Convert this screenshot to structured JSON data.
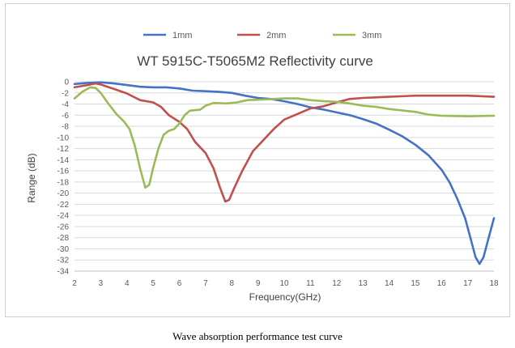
{
  "caption": "Wave absorption performance test curve",
  "chart_data": {
    "type": "line",
    "title": "WT 5915C-T5065M2 Reflectivity curve",
    "xlabel": "Frequency(GHz)",
    "ylabel": "Range (dB)",
    "xlim": [
      2,
      18
    ],
    "ylim": [
      -34,
      0
    ],
    "x_ticks": [
      "2",
      "3",
      "4",
      "5",
      "6",
      "7",
      "8",
      "9",
      "10",
      "11",
      "12",
      "13",
      "14",
      "15",
      "16",
      "17",
      "18"
    ],
    "y_ticks": [
      "0",
      "-2",
      "-4",
      "-6",
      "-8",
      "-10",
      "-12",
      "-14",
      "-16",
      "-18",
      "-20",
      "-22",
      "-24",
      "-26",
      "-28",
      "-30",
      "-32",
      "-34"
    ],
    "grid": "horizontal",
    "legend_position": "top",
    "series": [
      {
        "name": "1mm",
        "color": "#4472c4",
        "points": [
          [
            2,
            -0.4
          ],
          [
            2.5,
            -0.2
          ],
          [
            3,
            -0.1
          ],
          [
            3.5,
            -0.3
          ],
          [
            4,
            -0.6
          ],
          [
            4.5,
            -0.9
          ],
          [
            5,
            -1.0
          ],
          [
            5.5,
            -1.0
          ],
          [
            6,
            -1.2
          ],
          [
            6.5,
            -1.6
          ],
          [
            7,
            -1.7
          ],
          [
            7.5,
            -1.8
          ],
          [
            8,
            -2.0
          ],
          [
            8.5,
            -2.5
          ],
          [
            9,
            -2.9
          ],
          [
            9.5,
            -3.1
          ],
          [
            10,
            -3.5
          ],
          [
            10.5,
            -4.0
          ],
          [
            11,
            -4.6
          ],
          [
            11.5,
            -5.0
          ],
          [
            12,
            -5.5
          ],
          [
            12.5,
            -6.0
          ],
          [
            13,
            -6.7
          ],
          [
            13.5,
            -7.5
          ],
          [
            14,
            -8.6
          ],
          [
            14.5,
            -9.8
          ],
          [
            15,
            -11.3
          ],
          [
            15.5,
            -13.2
          ],
          [
            16,
            -15.8
          ],
          [
            16.3,
            -18.0
          ],
          [
            16.6,
            -21.0
          ],
          [
            16.9,
            -24.5
          ],
          [
            17.1,
            -28.0
          ],
          [
            17.3,
            -31.5
          ],
          [
            17.45,
            -32.7
          ],
          [
            17.6,
            -31.5
          ],
          [
            17.8,
            -28.0
          ],
          [
            18,
            -24.5
          ]
        ]
      },
      {
        "name": "2mm",
        "color": "#c0504d",
        "points": [
          [
            2,
            -1.0
          ],
          [
            2.5,
            -0.6
          ],
          [
            2.8,
            -0.3
          ],
          [
            3,
            -0.5
          ],
          [
            3.5,
            -1.3
          ],
          [
            4,
            -2.1
          ],
          [
            4.5,
            -3.3
          ],
          [
            5,
            -3.7
          ],
          [
            5.3,
            -4.5
          ],
          [
            5.6,
            -6.0
          ],
          [
            6,
            -7.2
          ],
          [
            6.3,
            -8.5
          ],
          [
            6.6,
            -10.8
          ],
          [
            7,
            -12.8
          ],
          [
            7.3,
            -15.5
          ],
          [
            7.55,
            -19.0
          ],
          [
            7.75,
            -21.5
          ],
          [
            7.9,
            -21.2
          ],
          [
            8.1,
            -19.0
          ],
          [
            8.4,
            -16.0
          ],
          [
            8.8,
            -12.5
          ],
          [
            9.2,
            -10.5
          ],
          [
            9.6,
            -8.5
          ],
          [
            10,
            -6.8
          ],
          [
            10.5,
            -5.8
          ],
          [
            11,
            -4.8
          ],
          [
            11.5,
            -4.4
          ],
          [
            12,
            -3.7
          ],
          [
            12.5,
            -3.1
          ],
          [
            13,
            -2.9
          ],
          [
            13.5,
            -2.8
          ],
          [
            14,
            -2.7
          ],
          [
            15,
            -2.5
          ],
          [
            16,
            -2.5
          ],
          [
            17,
            -2.5
          ],
          [
            18,
            -2.7
          ]
        ]
      },
      {
        "name": "3mm",
        "color": "#9bbb59",
        "points": [
          [
            2,
            -3.0
          ],
          [
            2.3,
            -1.8
          ],
          [
            2.6,
            -1.0
          ],
          [
            2.8,
            -1.1
          ],
          [
            3,
            -2.0
          ],
          [
            3.3,
            -4.0
          ],
          [
            3.6,
            -5.8
          ],
          [
            3.9,
            -7.2
          ],
          [
            4.1,
            -8.5
          ],
          [
            4.3,
            -11.5
          ],
          [
            4.5,
            -15.5
          ],
          [
            4.7,
            -19.0
          ],
          [
            4.85,
            -18.5
          ],
          [
            5,
            -15.5
          ],
          [
            5.2,
            -12.0
          ],
          [
            5.4,
            -9.5
          ],
          [
            5.6,
            -8.8
          ],
          [
            5.8,
            -8.5
          ],
          [
            6,
            -7.5
          ],
          [
            6.2,
            -6.0
          ],
          [
            6.4,
            -5.2
          ],
          [
            6.8,
            -5.0
          ],
          [
            7,
            -4.3
          ],
          [
            7.3,
            -3.8
          ],
          [
            7.8,
            -3.9
          ],
          [
            8.2,
            -3.7
          ],
          [
            8.6,
            -3.3
          ],
          [
            9.2,
            -3.2
          ],
          [
            10,
            -3.0
          ],
          [
            10.5,
            -3.0
          ],
          [
            11,
            -3.3
          ],
          [
            11.5,
            -3.5
          ],
          [
            12,
            -3.6
          ],
          [
            12.5,
            -3.9
          ],
          [
            13,
            -4.3
          ],
          [
            13.5,
            -4.5
          ],
          [
            14,
            -4.9
          ],
          [
            15,
            -5.4
          ],
          [
            15.5,
            -5.9
          ],
          [
            16,
            -6.1
          ],
          [
            17,
            -6.2
          ],
          [
            18,
            -6.1
          ]
        ]
      }
    ]
  }
}
